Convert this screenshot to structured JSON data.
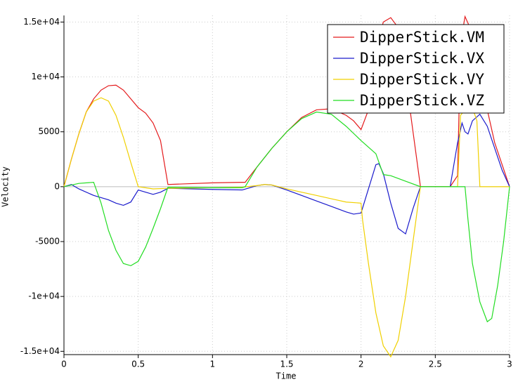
{
  "chart_data": {
    "type": "line",
    "x_label": "Time",
    "y_label": "Velocity",
    "xlim": [
      0,
      3
    ],
    "ylim": [
      -15300,
      15600
    ],
    "xticks": [
      0,
      0.5,
      1,
      1.5,
      2,
      2.5,
      3
    ],
    "yticks": [
      {
        "value": -15000,
        "label": "-1.5e+04"
      },
      {
        "value": -10000,
        "label": "-1e+04"
      },
      -5000,
      0,
      5000,
      {
        "value": 10000,
        "label": "1e+04"
      },
      {
        "value": 15000,
        "label": "1.5e+04"
      }
    ],
    "grid": true,
    "legend": "top-right",
    "series": [
      {
        "name": "DipperStick.VM",
        "color": "#e41a1c",
        "x": [
          0,
          0.05,
          0.1,
          0.15,
          0.2,
          0.25,
          0.3,
          0.35,
          0.4,
          0.45,
          0.5,
          0.55,
          0.6,
          0.65,
          0.7,
          0.8,
          1.0,
          1.2,
          1.22,
          1.3,
          1.4,
          1.5,
          1.6,
          1.7,
          1.8,
          1.9,
          1.95,
          2.0,
          2.05,
          2.1,
          2.15,
          2.2,
          2.25,
          2.3,
          2.35,
          2.4,
          2.6,
          2.65,
          2.67,
          2.7,
          2.75,
          2.8,
          2.9,
          3.0
        ],
        "values": [
          0,
          2500,
          4800,
          6800,
          8000,
          8800,
          9200,
          9250,
          8800,
          8000,
          7200,
          6700,
          5800,
          4200,
          200,
          250,
          350,
          400,
          400,
          1800,
          3500,
          5000,
          6300,
          7000,
          7100,
          6500,
          6000,
          5200,
          7000,
          12500,
          15000,
          15400,
          14500,
          10000,
          5000,
          0,
          0,
          1000,
          13000,
          15500,
          14000,
          10000,
          4000,
          0
        ]
      },
      {
        "name": "DipperStick.VX",
        "color": "#1a1acc",
        "x": [
          0,
          0.05,
          0.1,
          0.2,
          0.3,
          0.35,
          0.4,
          0.45,
          0.5,
          0.55,
          0.6,
          0.65,
          0.7,
          1.0,
          1.2,
          1.3,
          1.35,
          1.4,
          1.5,
          1.6,
          1.7,
          1.8,
          1.9,
          1.95,
          2.0,
          2.05,
          2.1,
          2.12,
          2.15,
          2.2,
          2.25,
          2.3,
          2.35,
          2.4,
          2.6,
          2.65,
          2.68,
          2.7,
          2.72,
          2.75,
          2.8,
          2.85,
          2.9,
          2.95,
          3.0
        ],
        "values": [
          0,
          200,
          -200,
          -800,
          -1200,
          -1500,
          -1700,
          -1400,
          -300,
          -500,
          -700,
          -500,
          -150,
          -250,
          -300,
          100,
          200,
          150,
          -300,
          -800,
          -1300,
          -1800,
          -2300,
          -2500,
          -2400,
          -200,
          2000,
          2100,
          1200,
          -1500,
          -3800,
          -4300,
          -2000,
          0,
          0,
          4000,
          5800,
          5000,
          4800,
          6000,
          6600,
          5500,
          3500,
          1500,
          0
        ]
      },
      {
        "name": "DipperStick.VY",
        "color": "#f0d000",
        "x": [
          0,
          0.05,
          0.1,
          0.15,
          0.2,
          0.25,
          0.3,
          0.35,
          0.4,
          0.45,
          0.5,
          0.6,
          0.7,
          1.0,
          1.2,
          1.3,
          1.35,
          1.4,
          1.5,
          1.6,
          1.7,
          1.8,
          1.9,
          2.0,
          2.01,
          2.05,
          2.1,
          2.15,
          2.2,
          2.25,
          2.3,
          2.35,
          2.4,
          2.65,
          2.67,
          2.7,
          2.75,
          2.78,
          2.8,
          3.0
        ],
        "values": [
          0,
          2500,
          4800,
          6800,
          7800,
          8100,
          7800,
          6500,
          4500,
          2200,
          0,
          -200,
          -150,
          -100,
          -50,
          100,
          200,
          150,
          -200,
          -500,
          -800,
          -1100,
          -1400,
          -1500,
          -3000,
          -7000,
          -11500,
          -14500,
          -15500,
          -14000,
          -10000,
          -5000,
          0,
          0,
          6500,
          7000,
          7200,
          6000,
          0,
          0
        ]
      },
      {
        "name": "DipperStick.VZ",
        "color": "#22dd22",
        "x": [
          0,
          0.1,
          0.2,
          0.25,
          0.3,
          0.35,
          0.4,
          0.45,
          0.5,
          0.55,
          0.6,
          0.65,
          0.7,
          1.0,
          1.2,
          1.22,
          1.3,
          1.4,
          1.5,
          1.6,
          1.7,
          1.8,
          1.9,
          2.0,
          2.1,
          2.15,
          2.2,
          2.3,
          2.4,
          2.7,
          2.72,
          2.75,
          2.8,
          2.85,
          2.88,
          2.92,
          2.96,
          3.0
        ],
        "values": [
          0,
          300,
          400,
          -1500,
          -4000,
          -5800,
          -7000,
          -7200,
          -6800,
          -5500,
          -3800,
          -2000,
          -50,
          -100,
          -100,
          0,
          1800,
          3500,
          5000,
          6200,
          6800,
          6600,
          5500,
          4200,
          3000,
          1100,
          1000,
          500,
          0,
          0,
          -3000,
          -7000,
          -10500,
          -12300,
          -12000,
          -9000,
          -5000,
          0
        ]
      }
    ]
  }
}
